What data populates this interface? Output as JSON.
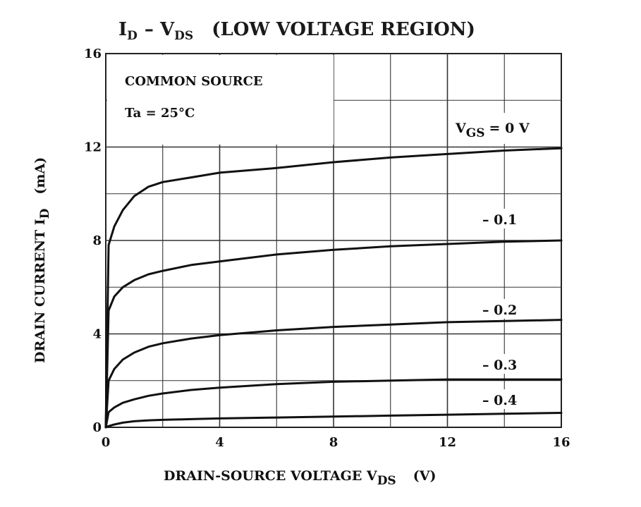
{
  "chart_data": {
    "type": "line",
    "title_main": "I",
    "title_sub": "D",
    "title_dash": "– V",
    "title_sub2": "DS",
    "title_rest": "(LOW VOLTAGE REGION)",
    "xlabel_main": "DRAIN-SOURCE VOLTAGE  V",
    "xlabel_sub": "DS",
    "xlabel_unit": "(V)",
    "ylabel_main": "DRAIN CURRENT  I",
    "ylabel_sub": "D",
    "ylabel_unit": "(mA)",
    "xlim": [
      0,
      16
    ],
    "ylim": [
      0,
      16
    ],
    "x_ticks": [
      "0",
      "4",
      "8",
      "12",
      "16"
    ],
    "y_ticks": [
      "0",
      "4",
      "8",
      "12",
      "16"
    ],
    "grid": true,
    "annotations": {
      "line1": "COMMON SOURCE",
      "line2": "Ta = 25°C"
    },
    "legend_prefix": "V",
    "legend_prefix_sub": "GS",
    "series": [
      {
        "name": "= 0 V",
        "x": [
          0,
          0.1,
          0.3,
          0.6,
          1.0,
          1.5,
          2,
          3,
          4,
          6,
          8,
          10,
          12,
          14,
          16
        ],
        "y": [
          0,
          7.8,
          8.6,
          9.3,
          9.9,
          10.3,
          10.5,
          10.7,
          10.9,
          11.1,
          11.35,
          11.55,
          11.7,
          11.85,
          11.95
        ]
      },
      {
        "name": "– 0.1",
        "x": [
          0,
          0.1,
          0.3,
          0.6,
          1.0,
          1.5,
          2,
          3,
          4,
          6,
          8,
          10,
          12,
          14,
          16
        ],
        "y": [
          0,
          5.0,
          5.6,
          6.0,
          6.3,
          6.55,
          6.7,
          6.95,
          7.1,
          7.4,
          7.6,
          7.75,
          7.85,
          7.95,
          8.0
        ]
      },
      {
        "name": "– 0.2",
        "x": [
          0,
          0.1,
          0.3,
          0.6,
          1.0,
          1.5,
          2,
          3,
          4,
          6,
          8,
          10,
          12,
          14,
          16
        ],
        "y": [
          0,
          2.0,
          2.5,
          2.9,
          3.2,
          3.45,
          3.6,
          3.8,
          3.95,
          4.15,
          4.3,
          4.4,
          4.5,
          4.55,
          4.6
        ]
      },
      {
        "name": "– 0.3",
        "x": [
          0,
          0.1,
          0.3,
          0.6,
          1.0,
          1.5,
          2,
          3,
          4,
          6,
          8,
          10,
          12,
          14,
          16
        ],
        "y": [
          0,
          0.65,
          0.85,
          1.05,
          1.2,
          1.35,
          1.45,
          1.6,
          1.7,
          1.85,
          1.95,
          2.0,
          2.05,
          2.05,
          2.05
        ]
      },
      {
        "name": "– 0.4",
        "x": [
          0,
          0.1,
          0.3,
          0.6,
          1.0,
          1.5,
          2,
          3,
          4,
          6,
          8,
          10,
          12,
          14,
          16
        ],
        "y": [
          0,
          0.05,
          0.12,
          0.2,
          0.26,
          0.3,
          0.32,
          0.35,
          0.38,
          0.42,
          0.46,
          0.5,
          0.54,
          0.58,
          0.62
        ]
      }
    ]
  }
}
